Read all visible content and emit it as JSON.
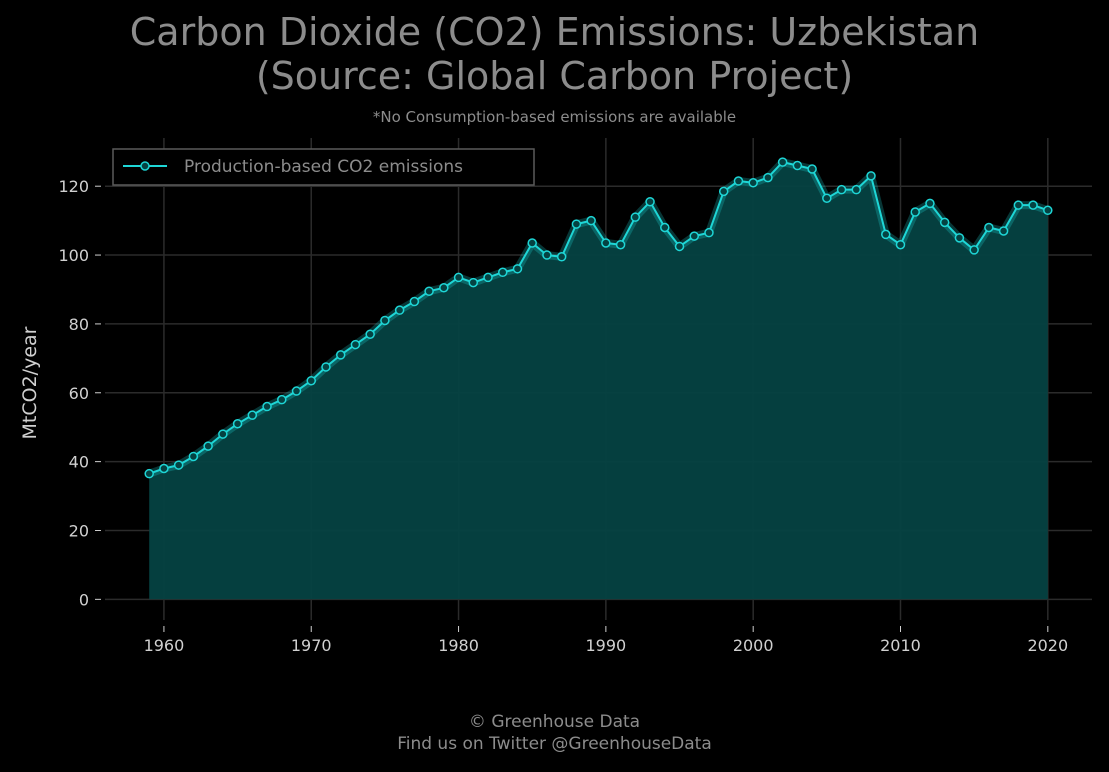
{
  "title_line1": "Carbon Dioxide (CO2) Emissions: Uzbekistan",
  "title_line2": "(Source: Global Carbon Project)",
  "subtitle": "*No Consumption-based emissions are available",
  "footer_line1": "© Greenhouse Data",
  "footer_line2": "Find us on Twitter @GreenhouseData",
  "colors": {
    "background": "#000000",
    "line": "#1ed6d6",
    "fill": "#054242",
    "grid": "#2b2b2b",
    "text": "#8c8c8c"
  },
  "chart_data": {
    "type": "area",
    "title": "Carbon Dioxide (CO2) Emissions: Uzbekistan (Source: Global Carbon Project)",
    "subtitle": "*No Consumption-based emissions are available",
    "xlabel": "",
    "ylabel": "MtCO2/year",
    "xlim": [
      1956,
      2023
    ],
    "ylim": [
      -6,
      134
    ],
    "x_ticks": [
      1960,
      1970,
      1980,
      1990,
      2000,
      2010,
      2020
    ],
    "y_ticks": [
      0,
      20,
      40,
      60,
      80,
      100,
      120
    ],
    "grid": true,
    "legend": "top-left",
    "series": [
      {
        "name": "Production-based CO2 emissions",
        "x": [
          1959,
          1960,
          1961,
          1962,
          1963,
          1964,
          1965,
          1966,
          1967,
          1968,
          1969,
          1970,
          1971,
          1972,
          1973,
          1974,
          1975,
          1976,
          1977,
          1978,
          1979,
          1980,
          1981,
          1982,
          1983,
          1984,
          1985,
          1986,
          1987,
          1988,
          1989,
          1990,
          1991,
          1992,
          1993,
          1994,
          1995,
          1996,
          1997,
          1998,
          1999,
          2000,
          2001,
          2002,
          2003,
          2004,
          2005,
          2006,
          2007,
          2008,
          2009,
          2010,
          2011,
          2012,
          2013,
          2014,
          2015,
          2016,
          2017,
          2018,
          2019,
          2020
        ],
        "y": [
          36.5,
          38.0,
          39.0,
          41.5,
          44.5,
          48.0,
          51.0,
          53.5,
          56.0,
          58.0,
          60.5,
          63.5,
          67.5,
          71.0,
          74.0,
          77.0,
          81.0,
          84.0,
          86.5,
          89.5,
          90.5,
          93.5,
          92.0,
          93.5,
          95.0,
          96.0,
          103.5,
          100.0,
          99.5,
          109.0,
          110.0,
          103.5,
          103.0,
          111.0,
          115.5,
          108.0,
          102.5,
          105.5,
          106.5,
          118.5,
          121.5,
          121.0,
          122.5,
          127.0,
          126.0,
          125.0,
          116.5,
          119.0,
          119.0,
          123.0,
          106.0,
          103.0,
          112.5,
          115.0,
          109.5,
          105.0,
          101.5,
          108.0,
          107.0,
          114.5,
          114.5,
          113.0
        ]
      }
    ]
  }
}
